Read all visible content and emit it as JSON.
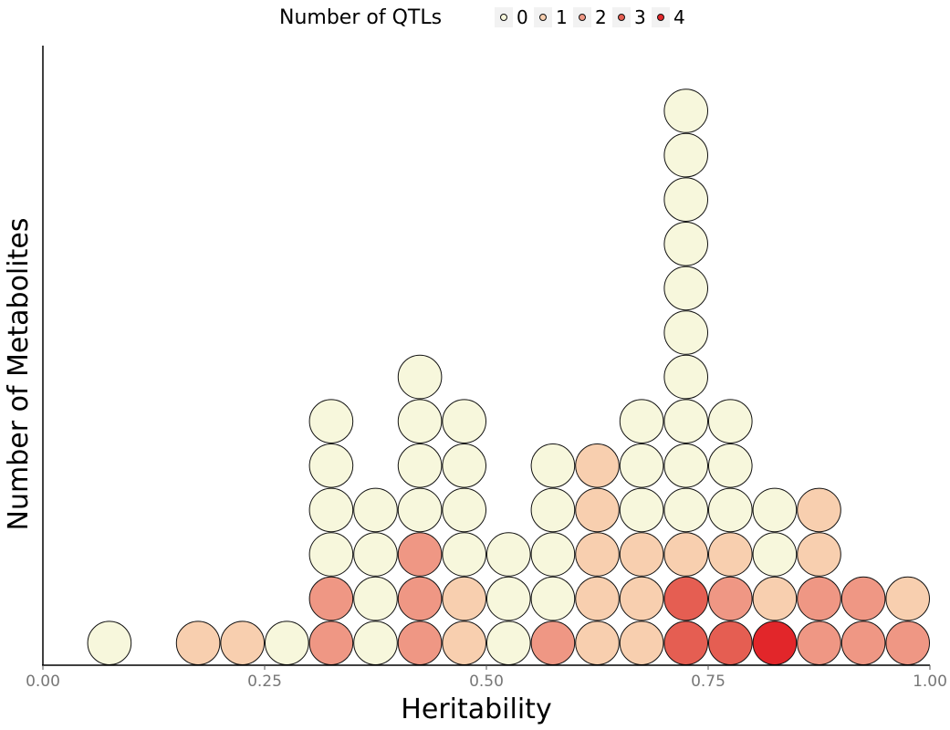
{
  "chart_data": {
    "type": "dotplot",
    "xlabel": "Heritability",
    "ylabel": "Number of Metabolites",
    "xlim": [
      0,
      1
    ],
    "xticks": [
      "0.00",
      "0.25",
      "0.50",
      "0.75",
      "1.00"
    ],
    "grid": false,
    "legend": {
      "title": "Number of QTLs",
      "position": "top",
      "entries": [
        "0",
        "1",
        "2",
        "3",
        "4"
      ],
      "colors": [
        "#f7f7dc",
        "#f8cfaf",
        "#ef9784",
        "#e55e52",
        "#e2262a"
      ]
    },
    "bin_width": 0.05,
    "bins": [
      {
        "x": 0.075,
        "qtls": [
          0
        ]
      },
      {
        "x": 0.175,
        "qtls": [
          1
        ]
      },
      {
        "x": 0.225,
        "qtls": [
          1
        ]
      },
      {
        "x": 0.275,
        "qtls": [
          0
        ]
      },
      {
        "x": 0.325,
        "qtls": [
          2,
          2,
          0,
          0,
          0,
          0
        ]
      },
      {
        "x": 0.375,
        "qtls": [
          0,
          0,
          0,
          0
        ]
      },
      {
        "x": 0.425,
        "qtls": [
          2,
          2,
          2,
          0,
          0,
          0,
          0
        ]
      },
      {
        "x": 0.475,
        "qtls": [
          1,
          1,
          0,
          0,
          0,
          0
        ]
      },
      {
        "x": 0.525,
        "qtls": [
          0,
          0,
          0
        ]
      },
      {
        "x": 0.575,
        "qtls": [
          2,
          0,
          0,
          0,
          0
        ]
      },
      {
        "x": 0.625,
        "qtls": [
          1,
          1,
          1,
          1,
          1
        ]
      },
      {
        "x": 0.675,
        "qtls": [
          1,
          1,
          1,
          0,
          0,
          0
        ]
      },
      {
        "x": 0.725,
        "qtls": [
          3,
          3,
          1,
          0,
          0,
          0,
          0,
          0,
          0,
          0,
          0,
          0,
          0
        ]
      },
      {
        "x": 0.775,
        "qtls": [
          3,
          2,
          1,
          0,
          0,
          0
        ]
      },
      {
        "x": 0.825,
        "qtls": [
          4,
          1,
          0,
          0
        ]
      },
      {
        "x": 0.875,
        "qtls": [
          2,
          2,
          1,
          1
        ]
      },
      {
        "x": 0.925,
        "qtls": [
          2,
          2
        ]
      },
      {
        "x": 0.975,
        "qtls": [
          2,
          1
        ]
      }
    ]
  }
}
